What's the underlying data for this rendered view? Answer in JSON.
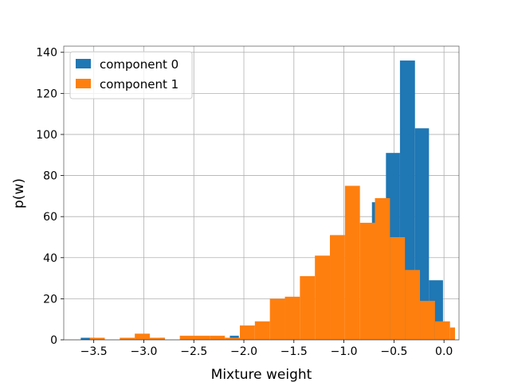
{
  "chart_data": {
    "type": "histogram",
    "title": "",
    "xlabel": "Mixture weight",
    "ylabel": "p(w)",
    "xlim": [
      -3.8,
      0.15
    ],
    "ylim": [
      0,
      143
    ],
    "xticks": [
      -3.5,
      -3.0,
      -2.5,
      -2.0,
      -1.5,
      -1.0,
      -0.5,
      0.0
    ],
    "xtick_labels": [
      "−3.5",
      "−3.0",
      "−2.5",
      "−2.0",
      "−1.5",
      "−1.0",
      "−0.5",
      "0.0"
    ],
    "yticks": [
      0,
      20,
      40,
      60,
      80,
      100,
      120,
      140
    ],
    "ytick_labels": [
      "0",
      "20",
      "40",
      "60",
      "80",
      "100",
      "120",
      "140"
    ],
    "grid": true,
    "legend_position": "top-left",
    "series": [
      {
        "name": "component 0",
        "color": "#1f77b4",
        "bins": [
          {
            "x0": -3.63,
            "x1": -3.49,
            "count": 1
          },
          {
            "x0": -2.84,
            "x1": -2.79,
            "count": 1
          },
          {
            "x0": -2.14,
            "x1": -2.05,
            "count": 2
          },
          {
            "x0": -0.72,
            "x1": -0.58,
            "count": 67
          },
          {
            "x0": -0.58,
            "x1": -0.44,
            "count": 91
          },
          {
            "x0": -0.44,
            "x1": -0.29,
            "count": 136
          },
          {
            "x0": -0.29,
            "x1": -0.15,
            "count": 103
          },
          {
            "x0": -0.15,
            "x1": -0.01,
            "count": 29
          }
        ]
      },
      {
        "name": "component 1",
        "color": "#ff7f0e",
        "bins": [
          {
            "x0": -3.54,
            "x1": -3.39,
            "count": 1
          },
          {
            "x0": -3.24,
            "x1": -3.09,
            "count": 1
          },
          {
            "x0": -3.09,
            "x1": -2.94,
            "count": 3
          },
          {
            "x0": -2.94,
            "x1": -2.79,
            "count": 1
          },
          {
            "x0": -2.64,
            "x1": -2.49,
            "count": 2
          },
          {
            "x0": -2.49,
            "x1": -2.34,
            "count": 2
          },
          {
            "x0": -2.34,
            "x1": -2.19,
            "count": 2
          },
          {
            "x0": -2.19,
            "x1": -2.04,
            "count": 1
          },
          {
            "x0": -2.04,
            "x1": -1.89,
            "count": 7
          },
          {
            "x0": -1.89,
            "x1": -1.74,
            "count": 9
          },
          {
            "x0": -1.74,
            "x1": -1.59,
            "count": 20
          },
          {
            "x0": -1.59,
            "x1": -1.44,
            "count": 21
          },
          {
            "x0": -1.44,
            "x1": -1.29,
            "count": 31
          },
          {
            "x0": -1.29,
            "x1": -1.14,
            "count": 41
          },
          {
            "x0": -1.14,
            "x1": -0.99,
            "count": 51
          },
          {
            "x0": -0.99,
            "x1": -0.84,
            "count": 75
          },
          {
            "x0": -0.84,
            "x1": -0.69,
            "count": 57
          },
          {
            "x0": -0.69,
            "x1": -0.54,
            "count": 69
          },
          {
            "x0": -0.54,
            "x1": -0.39,
            "count": 50
          },
          {
            "x0": -0.39,
            "x1": -0.24,
            "count": 34
          },
          {
            "x0": -0.24,
            "x1": -0.09,
            "count": 19
          },
          {
            "x0": -0.09,
            "x1": 0.06,
            "count": 9
          },
          {
            "x0": 0.06,
            "x1": 0.11,
            "count": 6
          }
        ]
      }
    ]
  }
}
